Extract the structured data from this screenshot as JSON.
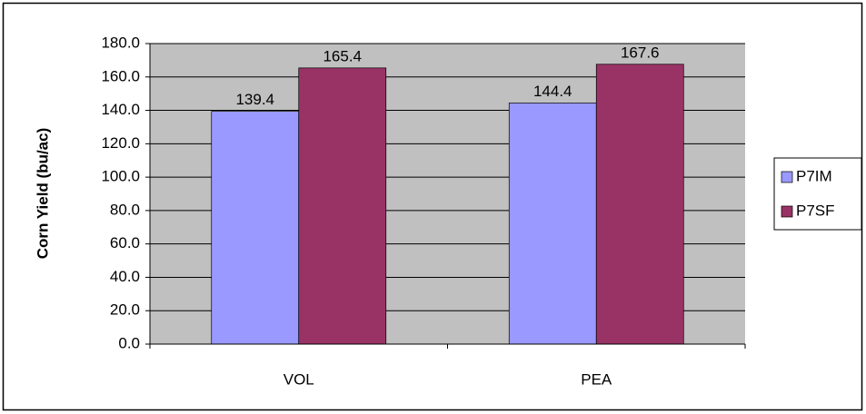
{
  "chart_data": {
    "type": "bar",
    "y_label": "Corn Yield (bu/ac)",
    "categories": [
      "VOL",
      "PEA"
    ],
    "series": [
      {
        "name": "P7IM",
        "color": "#9999ff",
        "values": [
          139.4,
          144.4
        ]
      },
      {
        "name": "P7SF",
        "color": "#993366",
        "values": [
          165.4,
          167.6
        ]
      }
    ],
    "ylim": [
      0,
      180
    ],
    "yticks": [
      {
        "value": 0,
        "label": "0.0"
      },
      {
        "value": 20,
        "label": "20.0"
      },
      {
        "value": 40,
        "label": "40.0"
      },
      {
        "value": 60,
        "label": "60.0"
      },
      {
        "value": 80,
        "label": "80.0"
      },
      {
        "value": 100,
        "label": "100.0"
      },
      {
        "value": 120,
        "label": "120.0"
      },
      {
        "value": 140,
        "label": "140.0"
      },
      {
        "value": 160,
        "label": "160.0"
      },
      {
        "value": 180,
        "label": "180.0"
      }
    ],
    "grid": true,
    "legend": "right",
    "plot_background": "#c0c0c0"
  }
}
